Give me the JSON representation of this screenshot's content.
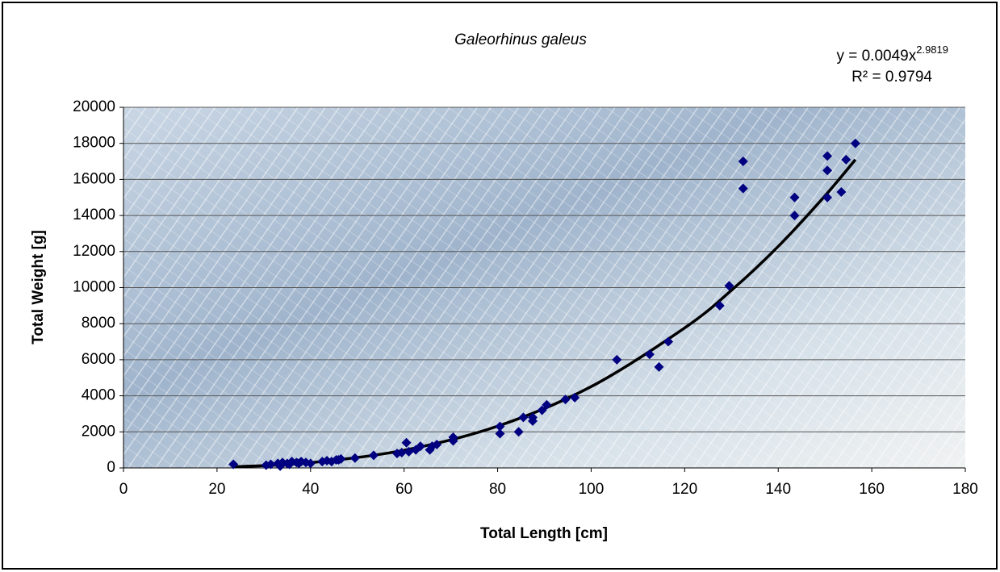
{
  "chart_data": {
    "type": "scatter",
    "title": "Galeorhinus galeus",
    "x_label": "Total Length [cm]",
    "y_label": "Total Weight [g]",
    "equation": {
      "base": "y = 0.0049x",
      "exponent": "2.9819",
      "r2": "R² = 0.9794"
    },
    "series": [
      {
        "color": "#000080",
        "x": [
          23.5,
          30.5,
          31.5,
          33,
          33.5,
          34,
          35,
          35.5,
          36,
          37,
          37.5,
          38,
          39,
          40,
          42.5,
          43.5,
          44.5,
          45.5,
          46,
          46.5,
          49.5,
          53.5,
          58.5,
          59.5,
          60.5,
          61,
          62.5,
          63.5,
          65.5,
          66,
          67,
          70.5,
          70.5,
          80.5,
          80.5,
          84.5,
          85.5,
          87.5,
          87.5,
          89.5,
          90.5,
          94.5,
          96.5,
          105.5,
          112.5,
          114.5,
          116.5,
          127.5,
          129.5,
          132.5,
          132.5,
          143.5,
          143.5,
          150.5,
          150.5,
          150.5,
          153.5,
          154.5,
          156.5
        ],
        "values": [
          200,
          150,
          200,
          250,
          100,
          300,
          250,
          200,
          350,
          300,
          250,
          350,
          300,
          250,
          350,
          400,
          350,
          450,
          450,
          500,
          550,
          700,
          800,
          850,
          1400,
          900,
          1000,
          1200,
          1000,
          1200,
          1300,
          1700,
          1500,
          2300,
          1900,
          2000,
          2800,
          2600,
          2800,
          3200,
          3500,
          3800,
          3900,
          6000,
          6300,
          5600,
          7000,
          9000,
          10100,
          17000,
          15500,
          15000,
          14000,
          17300,
          16500,
          15000,
          15300,
          17100,
          18000
        ]
      }
    ],
    "trendline": {
      "color": "#000000",
      "x": [
        23.5,
        40,
        60,
        80,
        100,
        120,
        130,
        140,
        150,
        156.5
      ],
      "values": [
        60,
        293,
        982,
        2316,
        4509,
        7768,
        9850,
        12285,
        15090,
        17100
      ]
    },
    "xlim": [
      0,
      180
    ],
    "xticks": [
      0,
      20,
      40,
      60,
      80,
      100,
      120,
      140,
      160,
      180
    ],
    "ylim": [
      0,
      20000
    ],
    "yticks": [
      0,
      2000,
      4000,
      6000,
      8000,
      10000,
      12000,
      14000,
      16000,
      18000,
      20000
    ],
    "grid": true
  }
}
